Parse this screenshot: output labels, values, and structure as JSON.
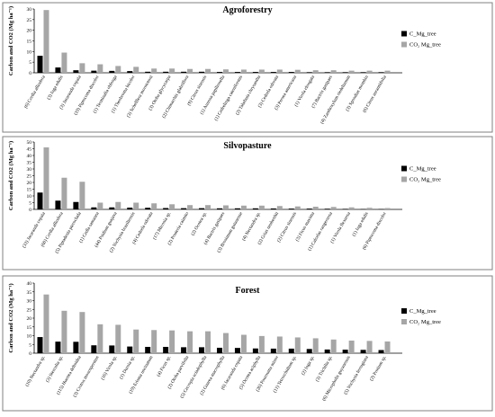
{
  "legend_colors": {
    "c": "#000000",
    "co2": "#a6a6a6"
  },
  "chart_data": [
    {
      "type": "bar",
      "title": "Agroforestry",
      "ylabel": "Carbon and CO2 (Mg ha⁻¹)",
      "ylim": [
        0,
        30
      ],
      "yticks": [
        0,
        5,
        10,
        15,
        20,
        25,
        30
      ],
      "legend_position": "right",
      "categories": [
        "(6) Cordia alliodora",
        "(3) Inga edulis",
        "(3) Jacaranda copaia",
        "(19) Piptocoma discolor",
        "(1) Terminalia oblonga",
        "(1) Theobroma bicolor",
        "(3) Schefflera morototoni",
        "(3) Otoba glycycarpa",
        "(2) Chimarrhis glabriflora",
        "(9) Citrus sinensis",
        "(1) Annona papilionella",
        "(1) Cedrelinga cateniformis",
        "(2) Tabebuia chrysantha",
        "(3) Cedrela odorata",
        "(3) Persea americana",
        "(1) Virola elongata",
        "(7) Bactris gasipaes",
        "(4) Zanthoxylum riedelianum",
        "(3) Spondias mombin",
        "(6) Citrus aurantiifolia"
      ],
      "series": [
        {
          "name": "C_Mg_tree",
          "values": [
            8,
            2.5,
            1.2,
            1,
            0.9,
            0.8,
            0.5,
            0.5,
            0.5,
            0.5,
            0.4,
            0.4,
            0.4,
            0.4,
            0.4,
            0.3,
            0.3,
            0.3,
            0.3,
            0.3
          ]
        },
        {
          "name": "CO₂ Mg_tree",
          "values": [
            29.5,
            9.5,
            4.5,
            4,
            3.2,
            2.8,
            2,
            2,
            1.8,
            1.8,
            1.6,
            1.5,
            1.5,
            1.5,
            1.4,
            1.2,
            1.2,
            1,
            1,
            1
          ]
        }
      ]
    },
    {
      "type": "bar",
      "title": "Silvopasture",
      "ylabel": "Carbon and CO2 (Mg ha⁻¹)",
      "ylim": [
        0,
        50
      ],
      "yticks": [
        0,
        5,
        10,
        15,
        20,
        25,
        30,
        35,
        40,
        45,
        50
      ],
      "legend_position": "right",
      "categories": [
        "(33) Jacaranda copaia",
        "(60) Cordia alliodora",
        "(5) Piptadenia pteroclada",
        "(1) Cedla samanea",
        "(44) Psidium guajava",
        "(2) Vochysia braziliensis",
        "(4) Cedrela odorata",
        "(17) Miconia sp.",
        "(2) Pouteria caimito",
        "(2) Ocotea sp.",
        "(4) Bactris gasipaes",
        "(3) Brosimum guianense",
        "(4) Nectandra sp.",
        "(2) Grias neuberthii",
        "(2) Citrus sinensis",
        "(3) Ficus maxima",
        "(1) Calcelas rangernosa",
        "(1) Virola flexuosa",
        "(1) Inga edulis",
        "(6) Piptocoma discolor"
      ],
      "series": [
        {
          "name": "C_Mg_tree",
          "values": [
            12.5,
            6.5,
            5.5,
            1.5,
            1.5,
            1.3,
            1.2,
            1,
            0.9,
            0.9,
            0.8,
            0.8,
            0.8,
            0.7,
            0.6,
            0.6,
            0.5,
            0.4,
            0.3,
            0.3
          ]
        },
        {
          "name": "CO₂ Mg_tree",
          "values": [
            46,
            23.5,
            20.5,
            5,
            5.5,
            5,
            4.5,
            3.8,
            3.2,
            3.2,
            3,
            2.8,
            2.8,
            2.5,
            2.2,
            2,
            1.8,
            1.5,
            1.2,
            1
          ]
        }
      ]
    },
    {
      "type": "bar",
      "title": "Forest",
      "ylabel": "Carbon and CO2 (Mg ha⁻¹)",
      "ylim": [
        0,
        40
      ],
      "yticks": [
        0,
        5,
        10,
        15,
        20,
        25,
        30,
        35,
        40
      ],
      "legend_position": "right",
      "categories": [
        "(10) Nectandra sp.",
        "(3) Sterculia sp.",
        "(115) Huertea deltoidea",
        "(3) Croton monospermus",
        "(16) Virola sp.",
        "(1) Duroia sp.",
        "(19) Erisma uncinatum",
        "(4) Ficus sp.",
        "(2) Otoba parvifolia",
        "(5) Cecropia sciadophylla",
        "(2) Guarea macrophylla",
        "(6) Jacaranda copaia",
        "(5) Ocotea aciphylla",
        "(26) Pourouma minor",
        "(11) Tetrorchidium sp.",
        "(2) Inga sp.",
        "(3) Trichilia sp.",
        "(6) Micropholis guyanensis",
        "(5) Vochysia ferruginea",
        "(2) Protium sp."
      ],
      "series": [
        {
          "name": "C_Mg_tree",
          "values": [
            9.2,
            6.6,
            6.5,
            4.5,
            4.4,
            3.8,
            3.6,
            3.6,
            3.4,
            3.4,
            3.1,
            3,
            2.7,
            2.6,
            2.6,
            2.4,
            2.1,
            2,
            1.9,
            1.8
          ]
        },
        {
          "name": "CO₂ Mg_tree",
          "values": [
            33.5,
            24.2,
            23.5,
            16.5,
            16.2,
            13.5,
            13.2,
            13,
            12.5,
            12.5,
            11.5,
            10.5,
            9.8,
            9.5,
            9,
            8.5,
            7.8,
            7.2,
            7,
            6.7
          ]
        }
      ]
    }
  ]
}
